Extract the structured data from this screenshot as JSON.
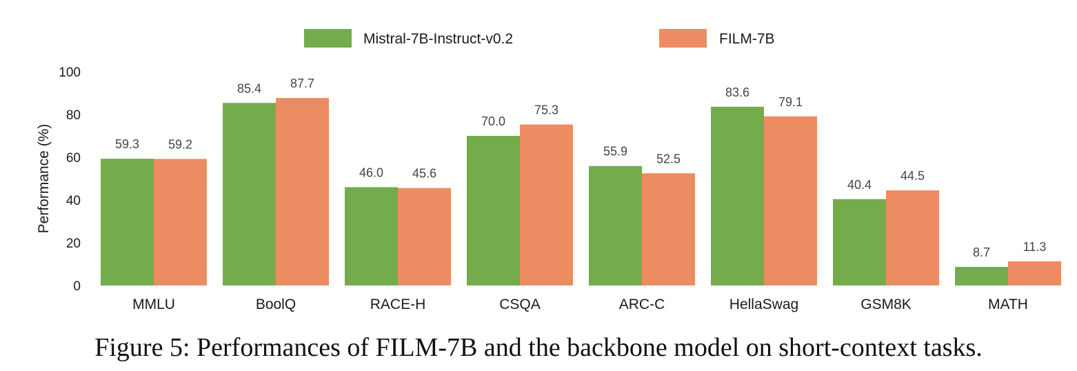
{
  "chart_data": {
    "type": "bar",
    "categories": [
      "MMLU",
      "BoolQ",
      "RACE-H",
      "CSQA",
      "ARC-C",
      "HellaSwag",
      "GSM8K",
      "MATH"
    ],
    "series": [
      {
        "name": "Mistral-7B-Instruct-v0.2",
        "color": "#74ac4c",
        "values": [
          59.3,
          85.4,
          46.0,
          70.0,
          55.9,
          83.6,
          40.4,
          8.7
        ],
        "labels": [
          "59.3",
          "85.4",
          "46.0",
          "70.0",
          "55.9",
          "83.6",
          "40.4",
          "8.7"
        ]
      },
      {
        "name": "FILM-7B",
        "color": "#ec8c62",
        "values": [
          59.2,
          87.7,
          45.6,
          75.3,
          52.5,
          79.1,
          44.5,
          11.3
        ],
        "labels": [
          "59.2",
          "87.7",
          "45.6",
          "75.3",
          "52.5",
          "79.1",
          "44.5",
          "11.3"
        ]
      }
    ],
    "ylabel": "Performance (%)",
    "yticks": [
      "0",
      "20",
      "40",
      "60",
      "80",
      "100"
    ],
    "ylim": [
      0,
      100
    ],
    "grid": false,
    "legend_position": "top-center"
  },
  "caption": {
    "prefix": "Figure 5: Performances of ",
    "model_first": "F",
    "model_rest": "IL",
    "model_tail": "M-7B",
    "suffix": " and the backbone model on short-context tasks."
  }
}
